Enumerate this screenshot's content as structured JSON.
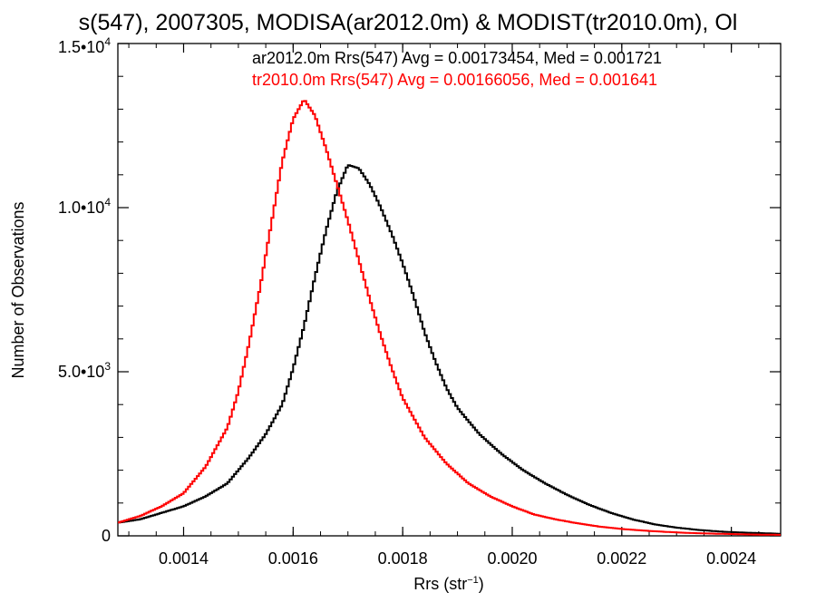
{
  "chart_data": {
    "type": "line",
    "title": "s(547), 2007305, MODISA(ar2012.0m) & MODIST(tr2010.0m), Ol",
    "xlabel": "Rrs (str",
    "xlabel_exponent": "−1",
    "xlabel_suffix": ")",
    "ylabel": "Number of Observations",
    "xlim": [
      0.00128,
      0.00249
    ],
    "ylim": [
      0,
      15000
    ],
    "x_ticks": [
      {
        "value": 0.0014,
        "label": "0.0014"
      },
      {
        "value": 0.0016,
        "label": "0.0016"
      },
      {
        "value": 0.0018,
        "label": "0.0018"
      },
      {
        "value": 0.002,
        "label": "0.0020"
      },
      {
        "value": 0.0022,
        "label": "0.0022"
      },
      {
        "value": 0.0024,
        "label": "0.0024"
      }
    ],
    "y_ticks": [
      {
        "value": 0,
        "label": "0",
        "exp": ""
      },
      {
        "value": 5000,
        "label": "5.0•10",
        "exp": "3"
      },
      {
        "value": 10000,
        "label": "1.0•10",
        "exp": "4"
      },
      {
        "value": 15000,
        "label": "1.5•10",
        "exp": "4"
      }
    ],
    "annotations": [
      {
        "text": "ar2012.0m Rrs(547) Avg = 0.00173454, Med = 0.001721",
        "color": "#000000"
      },
      {
        "text": "tr2010.0m Rrs(547) Avg = 0.00166056, Med = 0.001641",
        "color": "#ff0000"
      }
    ],
    "series": [
      {
        "color": "#000000",
        "x": [
          0.00128,
          0.00132,
          0.00136,
          0.0014,
          0.00144,
          0.00148,
          0.00152,
          0.00155,
          0.00158,
          0.0016,
          0.00162,
          0.00164,
          0.00166,
          0.00168,
          0.0017,
          0.00172,
          0.00174,
          0.00176,
          0.00178,
          0.0018,
          0.00182,
          0.00184,
          0.00186,
          0.00188,
          0.0019,
          0.00194,
          0.00198,
          0.00202,
          0.00206,
          0.0021,
          0.00214,
          0.00218,
          0.00222,
          0.00226,
          0.0023,
          0.00234,
          0.00238,
          0.00242,
          0.00246,
          0.00249
        ],
        "y": [
          400,
          500,
          700,
          900,
          1200,
          1600,
          2400,
          3100,
          4000,
          5100,
          6400,
          7900,
          9300,
          10500,
          11300,
          11200,
          10700,
          10000,
          9200,
          8300,
          7300,
          6200,
          5300,
          4500,
          3900,
          3100,
          2500,
          2000,
          1600,
          1250,
          950,
          700,
          500,
          350,
          250,
          180,
          130,
          100,
          80,
          60
        ]
      },
      {
        "color": "#ff0000",
        "x": [
          0.00128,
          0.00132,
          0.00136,
          0.0014,
          0.00144,
          0.00148,
          0.0015,
          0.00152,
          0.00154,
          0.00156,
          0.00158,
          0.0016,
          0.00162,
          0.00164,
          0.00166,
          0.00168,
          0.0017,
          0.00172,
          0.00174,
          0.00176,
          0.00178,
          0.0018,
          0.00184,
          0.00188,
          0.00192,
          0.00196,
          0.002,
          0.00204,
          0.00208,
          0.00212,
          0.00216,
          0.0022,
          0.00224,
          0.00228,
          0.00232,
          0.00236,
          0.0024,
          0.00244,
          0.00249
        ],
        "y": [
          400,
          600,
          900,
          1300,
          2100,
          3300,
          4400,
          5900,
          7600,
          9500,
          11400,
          12700,
          13300,
          12800,
          11800,
          10700,
          9600,
          8400,
          7200,
          6100,
          5100,
          4200,
          3000,
          2200,
          1600,
          1200,
          900,
          650,
          500,
          380,
          280,
          210,
          160,
          120,
          90,
          70,
          55,
          40,
          30
        ]
      }
    ]
  }
}
